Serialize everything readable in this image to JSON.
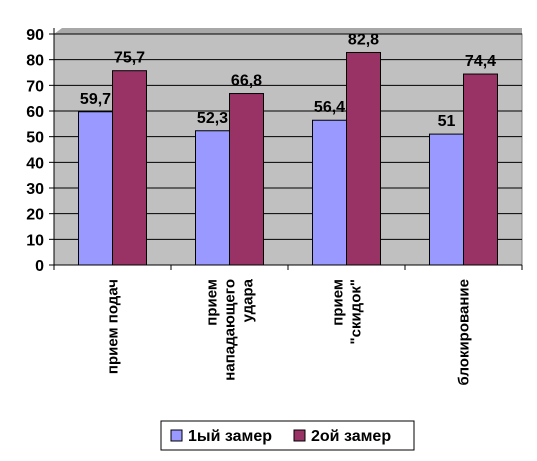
{
  "chart_data": {
    "type": "bar",
    "categories": [
      [
        "прием подач"
      ],
      [
        "прием",
        "нападающего",
        "удара"
      ],
      [
        "прием",
        "\"скидок\""
      ],
      [
        "блокирование"
      ]
    ],
    "series": [
      {
        "name": "1ый замер",
        "color": "#9999ff",
        "values": [
          59.7,
          52.3,
          56.4,
          51
        ],
        "labels": [
          "59,7",
          "52,3",
          "56,4",
          "51"
        ]
      },
      {
        "name": "2ой замер",
        "color": "#993366",
        "values": [
          75.7,
          66.8,
          82.8,
          74.4
        ],
        "labels": [
          "75,7",
          "66,8",
          "82,8",
          "74,4"
        ]
      }
    ],
    "ylim": [
      0,
      90
    ],
    "yticks": [
      0,
      10,
      20,
      30,
      40,
      50,
      60,
      70,
      80,
      90
    ],
    "grid": true,
    "legend": "bottom",
    "plot_background": "#c0c0c0",
    "title": "",
    "xlabel": "",
    "ylabel": ""
  }
}
